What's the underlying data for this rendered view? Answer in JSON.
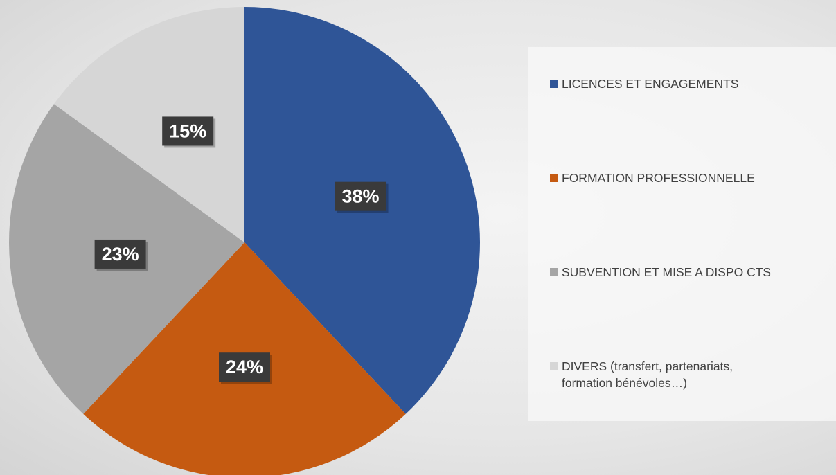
{
  "chart_data": {
    "type": "pie",
    "categories": [
      "LICENCES ET ENGAGEMENTS",
      "FORMATION PROFESSIONNELLE",
      "SUBVENTION ET MISE A DISPO CTS",
      "DIVERS (transfert, partenariats, formation bénévoles…)"
    ],
    "values": [
      38,
      24,
      23,
      15
    ],
    "value_labels": [
      "38%",
      "24%",
      "23%",
      "15%"
    ],
    "colors": [
      "#2f5597",
      "#c55a11",
      "#a5a5a5",
      "#d6d6d6"
    ],
    "legend": "right"
  }
}
